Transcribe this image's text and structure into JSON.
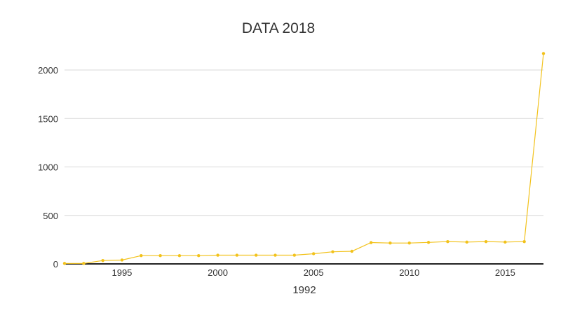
{
  "chart_data": {
    "type": "line",
    "title": "DATA 2018",
    "xlabel": "1992",
    "ylabel": "",
    "xlim": [
      1992,
      2017
    ],
    "ylim": [
      0,
      2200
    ],
    "x_ticks": [
      1995,
      2000,
      2005,
      2010,
      2015
    ],
    "y_ticks": [
      0,
      500,
      1000,
      1500,
      2000
    ],
    "grid": true,
    "legend": "none",
    "colors": {
      "line": "#f2c21b",
      "grid": "#d9d9d9",
      "axis": "#222222",
      "text": "#333333"
    },
    "series": [
      {
        "x": [
          1992,
          1993,
          1994,
          1995,
          1996,
          1997,
          1998,
          1999,
          2000,
          2001,
          2002,
          2003,
          2004,
          2005,
          2006,
          2007,
          2008,
          2009,
          2010,
          2011,
          2012,
          2013,
          2014,
          2015,
          2016,
          2017
        ],
        "values": [
          5,
          5,
          35,
          40,
          85,
          85,
          85,
          85,
          90,
          90,
          90,
          90,
          90,
          105,
          125,
          130,
          220,
          215,
          215,
          222,
          230,
          225,
          230,
          225,
          230,
          2170
        ]
      }
    ]
  }
}
